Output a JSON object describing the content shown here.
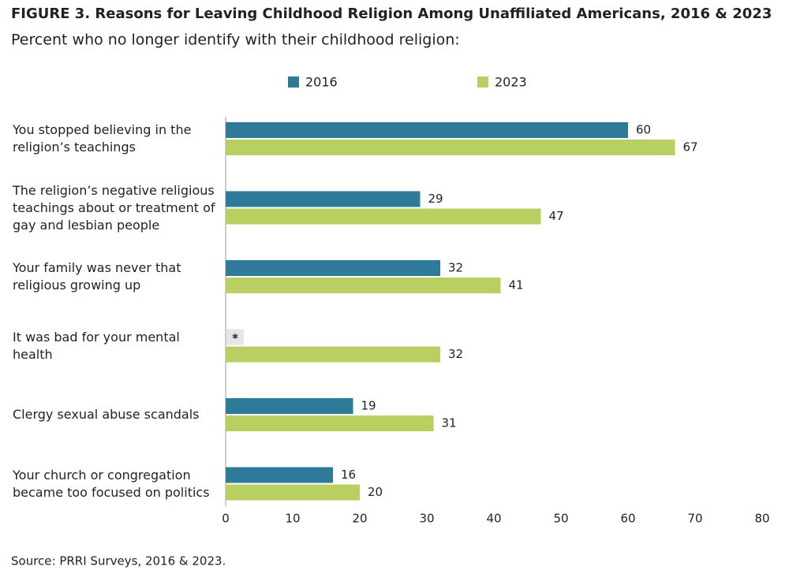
{
  "chart_data": {
    "type": "hbar",
    "title": "FIGURE 3. Reasons for Leaving Childhood Religion Among Unaffiliated Americans, 2016 & 2023",
    "subtitle": "Percent who no longer identify with their childhood religion:",
    "categories": [
      "You stopped believing in the religion’s teachings",
      "The religion’s negative religious teachings about or treatment of gay and lesbian people",
      "Your family was never that religious growing up",
      "It was bad for your mental health",
      "Clergy sexual abuse scandals",
      "Your church or congregation became too focused on politics"
    ],
    "series": [
      {
        "name": "2016",
        "color": "#2e7a98",
        "values": [
          60,
          29,
          32,
          null,
          19,
          16
        ],
        "value_labels": [
          null,
          null,
          null,
          "*",
          null,
          null
        ]
      },
      {
        "name": "2023",
        "color": "#b8cf62",
        "values": [
          67,
          47,
          41,
          32,
          31,
          20
        ]
      }
    ],
    "xlim": [
      0,
      80
    ],
    "xticks": [
      0,
      10,
      20,
      30,
      40,
      50,
      60,
      70,
      80
    ],
    "source": "Source: PRRI Surveys, 2016 & 2023."
  }
}
